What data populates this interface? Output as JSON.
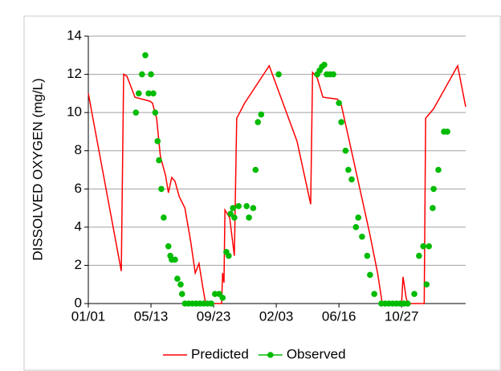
{
  "chart_data": {
    "type": "line",
    "ylabel": "DISSOLVED OXYGEN (mg/L)",
    "ylim": [
      0,
      14
    ],
    "yticks": [
      0,
      2,
      4,
      6,
      8,
      10,
      12,
      14
    ],
    "xlim": [
      0,
      801
    ],
    "xticks": [
      {
        "value": 0,
        "label": "01/01"
      },
      {
        "value": 133,
        "label": "05/13"
      },
      {
        "value": 266,
        "label": "09/23"
      },
      {
        "value": 399,
        "label": "02/03"
      },
      {
        "value": 532,
        "label": "06/16"
      },
      {
        "value": 665,
        "label": "10/27"
      }
    ],
    "grid": true,
    "legend": "bottom",
    "series": [
      {
        "name": "Predicted",
        "color": "#ff0000",
        "style": "line",
        "x": [
          0,
          70,
          75,
          82,
          99,
          130,
          136,
          145,
          153,
          164,
          170,
          177,
          184,
          193,
          205,
          217,
          227,
          235,
          242,
          249,
          283,
          285,
          288,
          290,
          300,
          310,
          315,
          332,
          384,
          443,
          472,
          476,
          486,
          498,
          529,
          537,
          563,
          597,
          614,
          624,
          665,
          668,
          675,
          679,
          713,
          716,
          733,
          784,
          801
        ],
        "values": [
          11.0,
          1.7,
          12.0,
          11.9,
          10.8,
          10.6,
          10.5,
          9.7,
          7.7,
          6.7,
          5.8,
          6.6,
          6.4,
          5.6,
          5.0,
          3.3,
          1.6,
          2.1,
          1.0,
          0,
          0,
          1.6,
          1.1,
          4.9,
          4.5,
          2.5,
          9.7,
          10.5,
          12.45,
          8.5,
          5.2,
          12.1,
          11.8,
          10.8,
          10.7,
          10.4,
          7.5,
          3.7,
          1.6,
          0,
          0,
          1.4,
          0.25,
          0,
          0,
          9.7,
          10.2,
          12.45,
          10.3
        ]
      },
      {
        "name": "Observed",
        "color": "#00bb00",
        "style": "points",
        "x": [
          101,
          107,
          114,
          121,
          128,
          133,
          138,
          142,
          147,
          150,
          155,
          160,
          170,
          174,
          177,
          184,
          189,
          196,
          199,
          205,
          213,
          221,
          229,
          237,
          245,
          253,
          261,
          269,
          278,
          285,
          293,
          298,
          302,
          307,
          310,
          319,
          336,
          341,
          350,
          355,
          360,
          367,
          404,
          486,
          491,
          496,
          501,
          506,
          513,
          520,
          532,
          537,
          546,
          552,
          559,
          568,
          573,
          581,
          592,
          598,
          607,
          622,
          630,
          638,
          646,
          654,
          662,
          670,
          678,
          692,
          702,
          711,
          718,
          723,
          731,
          733,
          743,
          755,
          762
        ],
        "values": [
          10.0,
          11.0,
          12.0,
          13.0,
          11.0,
          12.0,
          11.0,
          10.0,
          8.5,
          7.5,
          6.0,
          4.5,
          3.0,
          2.5,
          2.3,
          2.3,
          1.3,
          1.0,
          0.5,
          0,
          0,
          0,
          0,
          0,
          0,
          0,
          0,
          0.5,
          0.5,
          0.3,
          2.7,
          2.5,
          4.7,
          5.0,
          4.5,
          5.1,
          5.1,
          4.5,
          5.0,
          7.0,
          9.5,
          9.9,
          12.0,
          12.0,
          12.2,
          12.4,
          12.5,
          12.0,
          12.0,
          12.0,
          10.5,
          9.5,
          8.0,
          7.0,
          6.5,
          4.0,
          4.5,
          3.5,
          2.5,
          1.5,
          0.5,
          0,
          0,
          0,
          0,
          0,
          0,
          0,
          0,
          0.5,
          2.5,
          3.0,
          1.0,
          3.0,
          5.0,
          6.0,
          7.0,
          9.0,
          9.0
        ]
      }
    ]
  }
}
